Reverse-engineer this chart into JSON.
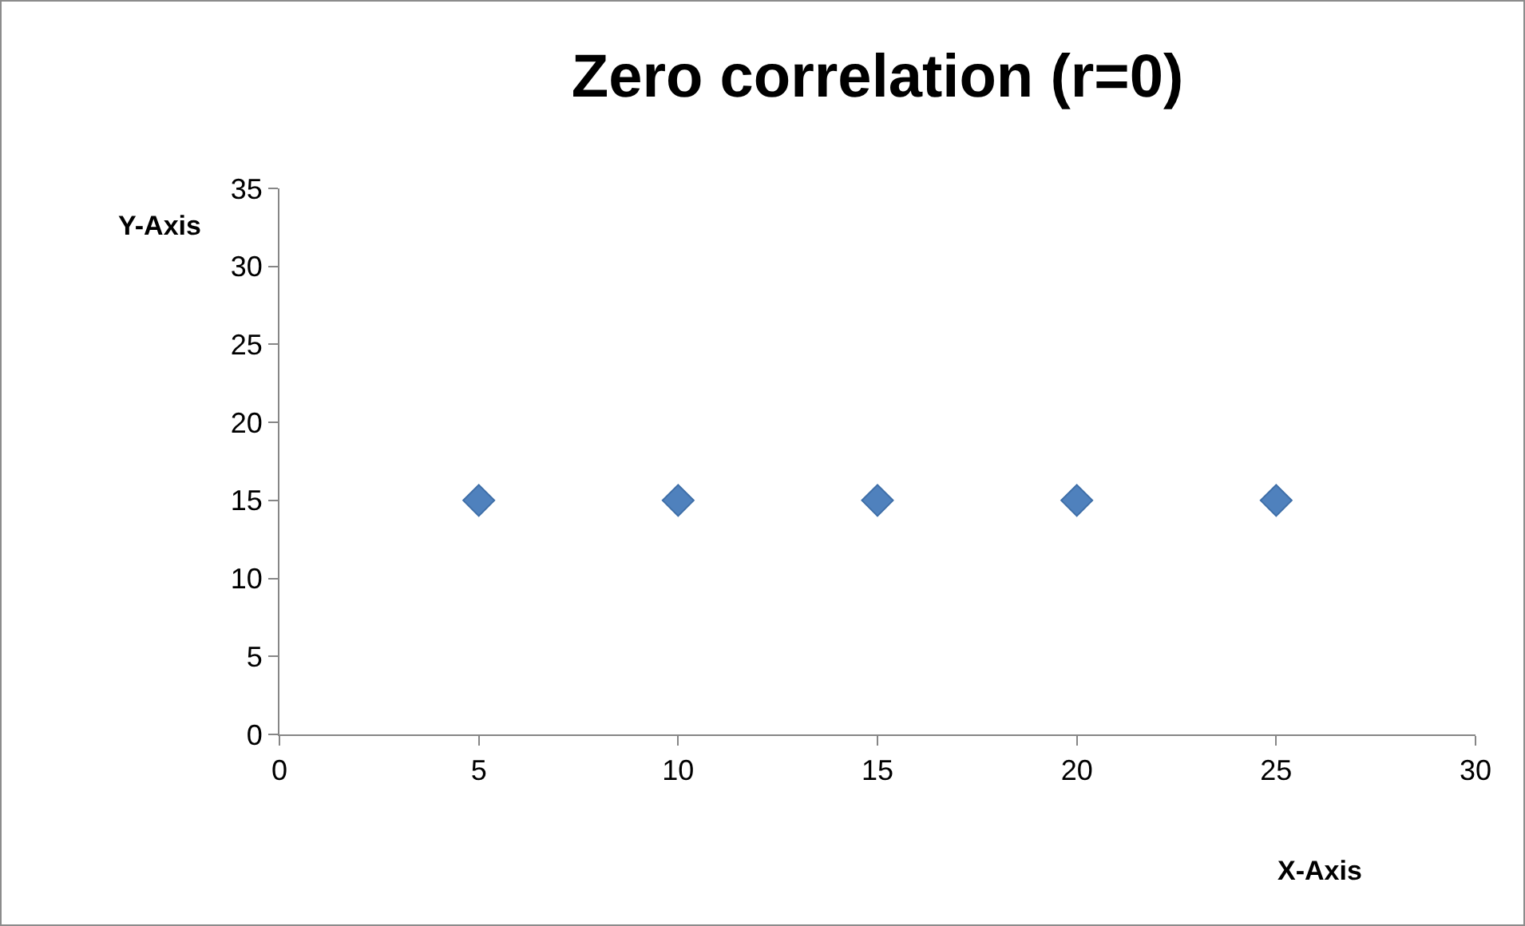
{
  "chart_data": {
    "type": "scatter",
    "title": "Zero correlation (r=0)",
    "xlabel": "X-Axis",
    "ylabel": "Y-Axis",
    "x": [
      5,
      10,
      15,
      20,
      25
    ],
    "series": [
      {
        "color": "#4f81bd",
        "values": [
          15,
          15,
          15,
          15,
          15
        ]
      }
    ],
    "xlim": [
      0,
      30
    ],
    "xticks": [
      0,
      5,
      10,
      15,
      20,
      25,
      30
    ],
    "ylim": [
      0,
      35
    ],
    "yticks": [
      0,
      5,
      10,
      15,
      20,
      25,
      30,
      35
    ],
    "grid": false,
    "marker": "diamond"
  }
}
